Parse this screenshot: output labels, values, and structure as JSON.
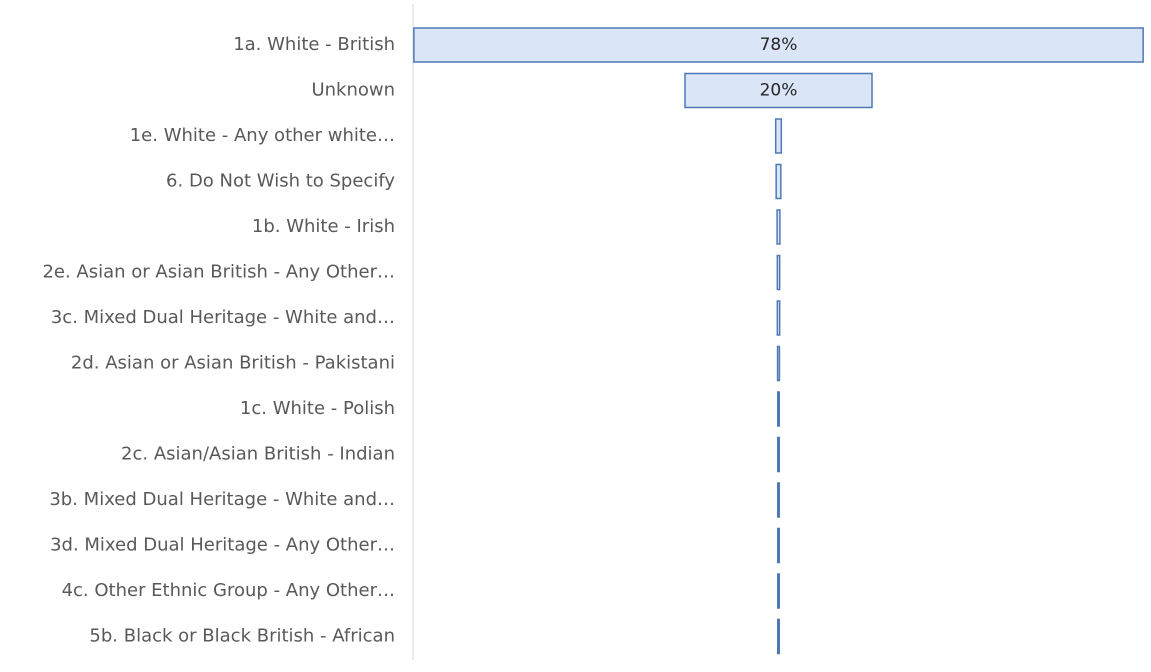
{
  "chart_data": {
    "type": "funnel",
    "categories": [
      "1a. White - British",
      "Unknown",
      "1e. White - Any other white…",
      "6. Do Not Wish to Specify",
      "1b. White - Irish",
      "2e. Asian or Asian British - Any Other…",
      "3c. Mixed Dual Heritage - White and…",
      "2d. Asian or Asian British - Pakistani",
      "1c. White - Polish",
      "2c. Asian/Asian British - Indian",
      "3b. Mixed Dual Heritage - White and…",
      "3d. Mixed Dual Heritage - Any Other…",
      "4c. Other Ethnic Group - Any Other…",
      "5b. Black or Black British - African"
    ],
    "values": [
      78,
      20,
      0.6,
      0.5,
      0.3,
      0.25,
      0.25,
      0.2,
      0.15,
      0.15,
      0.15,
      0.15,
      0.15,
      0.15
    ],
    "value_labels": [
      "78%",
      "20%",
      null,
      null,
      null,
      null,
      null,
      null,
      null,
      null,
      null,
      null,
      null,
      null
    ],
    "color": "#dae5f7",
    "edge_color": "#4f79b5"
  }
}
